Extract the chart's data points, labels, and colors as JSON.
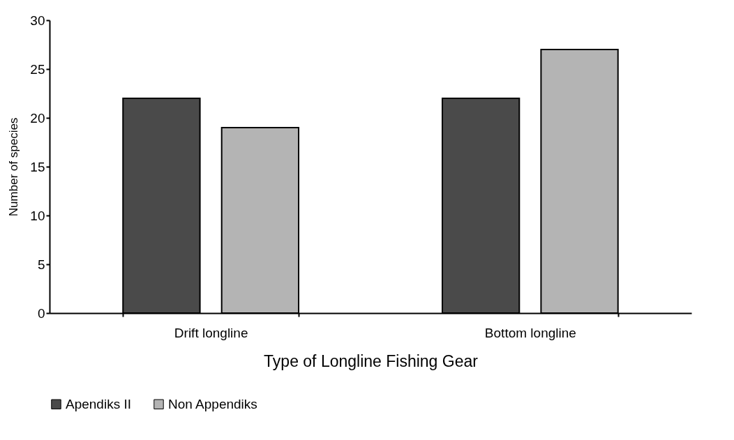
{
  "chart_data": {
    "type": "bar",
    "xlabel": "Type of Longline Fishing Gear",
    "ylabel": "Number of species",
    "categories": [
      "Drift longline",
      "Bottom  longline"
    ],
    "series": [
      {
        "name": "Apendiks II",
        "color": "#4a4a4a",
        "values": [
          22,
          22
        ]
      },
      {
        "name": "Non Appendiks",
        "color": "#b4b4b4",
        "values": [
          19,
          27
        ]
      }
    ],
    "ylim": [
      0,
      30
    ],
    "yticks": [
      0,
      5,
      10,
      15,
      20,
      25,
      30
    ],
    "legend": "bottom"
  }
}
